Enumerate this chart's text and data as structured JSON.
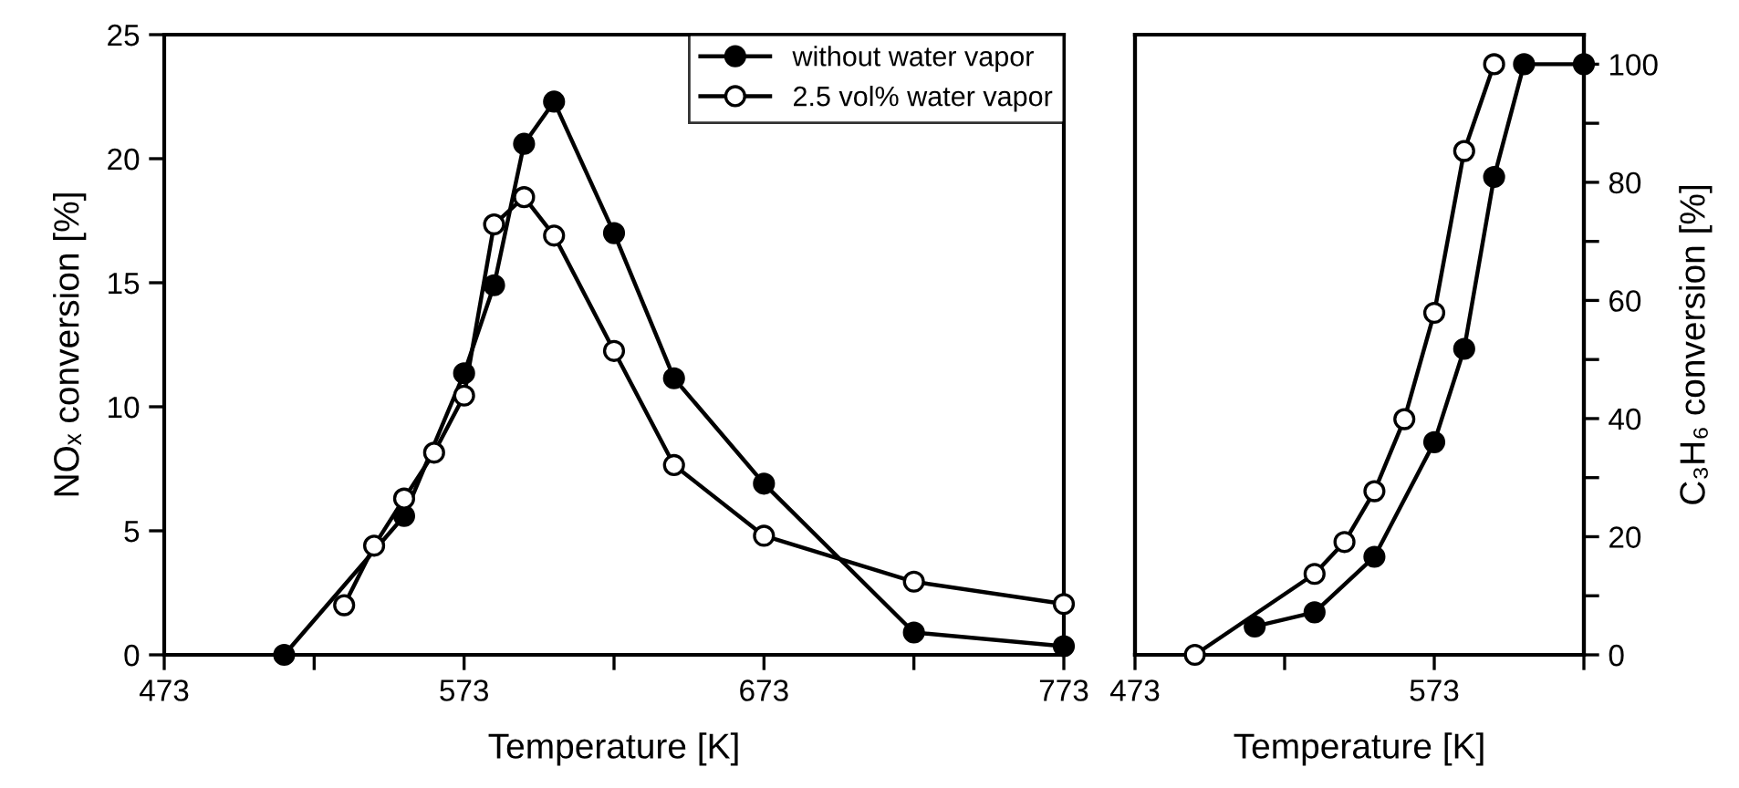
{
  "chart_data": [
    {
      "type": "line",
      "xlabel": "Temperature [K]",
      "ylabel": "NOₓ conversion [%]",
      "xlim": [
        473,
        773
      ],
      "ylim": [
        0,
        25
      ],
      "xticks": [
        473,
        {
          "value": 523,
          "label": null
        },
        573,
        {
          "value": 623,
          "label": null
        },
        673,
        {
          "value": 723,
          "label": null
        },
        773
      ],
      "yticks": [
        0,
        5,
        10,
        15,
        20,
        25
      ],
      "legend": "top right",
      "line_style": "solid",
      "marker": "circle",
      "series": [
        {
          "name": "without water vapor",
          "color": "#000000",
          "x": [
            513,
            553,
            573,
            583,
            593,
            603,
            623,
            643,
            673,
            723,
            773
          ],
          "values": [
            0,
            5.6,
            11.35,
            14.9,
            20.6,
            22.3,
            17.0,
            11.15,
            6.9,
            0.9,
            0.35
          ]
        },
        {
          "name": "2.5 vol% water vapor",
          "color": "#000000",
          "x": [
            533,
            543,
            553,
            563,
            573,
            583,
            593,
            603,
            623,
            643,
            673,
            723,
            773
          ],
          "values": [
            2.0,
            4.4,
            6.3,
            8.15,
            10.45,
            17.35,
            18.45,
            16.9,
            12.25,
            7.65,
            4.8,
            2.95,
            2.05
          ]
        }
      ]
    },
    {
      "type": "line",
      "xlabel": "Temperature [K]",
      "y2label": "C₃H₆ conversion [%]",
      "xlim": [
        473,
        623
      ],
      "y2lim": [
        0,
        105
      ],
      "xticks": [
        473,
        {
          "value": 523,
          "label": null
        },
        573,
        {
          "value": 623,
          "label": null
        }
      ],
      "y2ticks": [
        0,
        {
          "value": 10,
          "label": null
        },
        20,
        {
          "value": 30,
          "label": null
        },
        40,
        {
          "value": 50,
          "label": null
        },
        60,
        {
          "value": 70,
          "label": null
        },
        80,
        {
          "value": 90,
          "label": null
        },
        100
      ],
      "line_style": "solid",
      "marker": "circle",
      "series": [
        {
          "color": "#000000",
          "axis": "y2",
          "x": [
            513,
            533,
            553,
            573,
            583,
            593,
            603,
            623
          ],
          "values": [
            4.8,
            7.2,
            16.6,
            36.0,
            51.8,
            80.9,
            100,
            100
          ]
        },
        {
          "color": "#000000",
          "axis": "y2",
          "x": [
            493,
            533,
            543,
            553,
            563,
            573,
            583,
            593
          ],
          "values": [
            0,
            13.7,
            19.1,
            27.7,
            39.9,
            57.9,
            85.3,
            100
          ]
        }
      ]
    }
  ]
}
